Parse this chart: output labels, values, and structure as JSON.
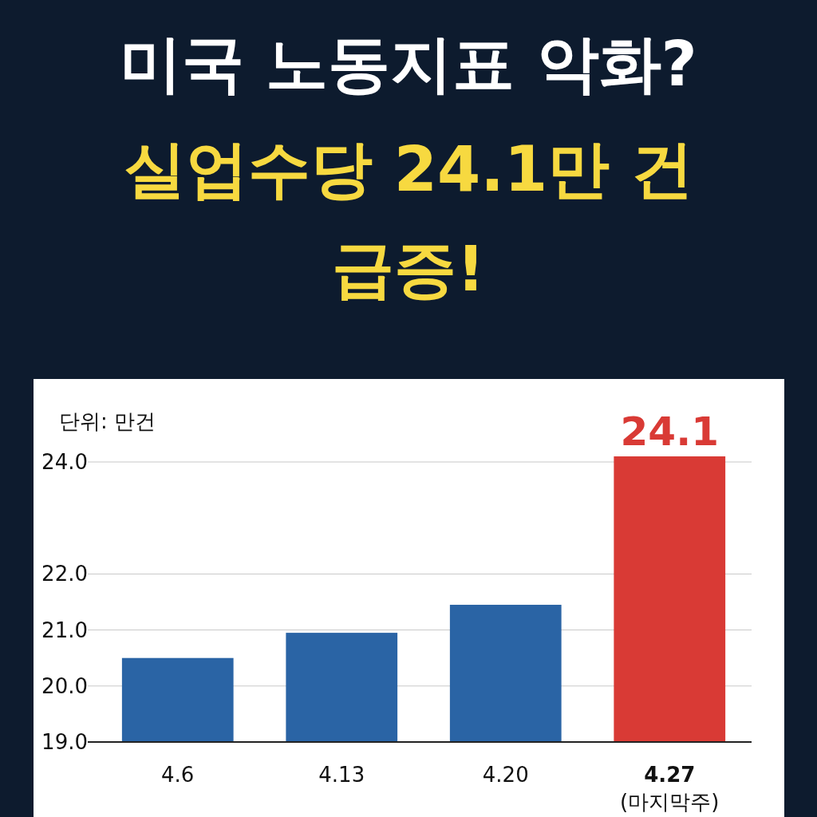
{
  "chart_data": {
    "type": "bar",
    "title": "미국 노동지표 악화?",
    "subtitle": "실업수당 24.1만 건 급증!",
    "annotations": [
      "단위: 만건"
    ],
    "categories": [
      "4.6",
      "4.13",
      "4.20",
      "4.27\n(마지막주)"
    ],
    "values": [
      20.5,
      20.95,
      21.45,
      24.1
    ],
    "colors": [
      "#2a64a5",
      "#2a64a5",
      "#2a64a5",
      "#d93a35"
    ],
    "value_labels": [
      null,
      null,
      null,
      "24.1"
    ],
    "ylim": [
      19,
      24.1
    ],
    "yticks": [
      {
        "value": 19,
        "label": "19.0"
      },
      {
        "value": 20,
        "label": "20.0"
      },
      {
        "value": 21,
        "label": "21.0"
      },
      {
        "value": 22,
        "label": "22.0"
      },
      {
        "value": 24,
        "label": "24.0"
      }
    ],
    "grid": "y"
  }
}
